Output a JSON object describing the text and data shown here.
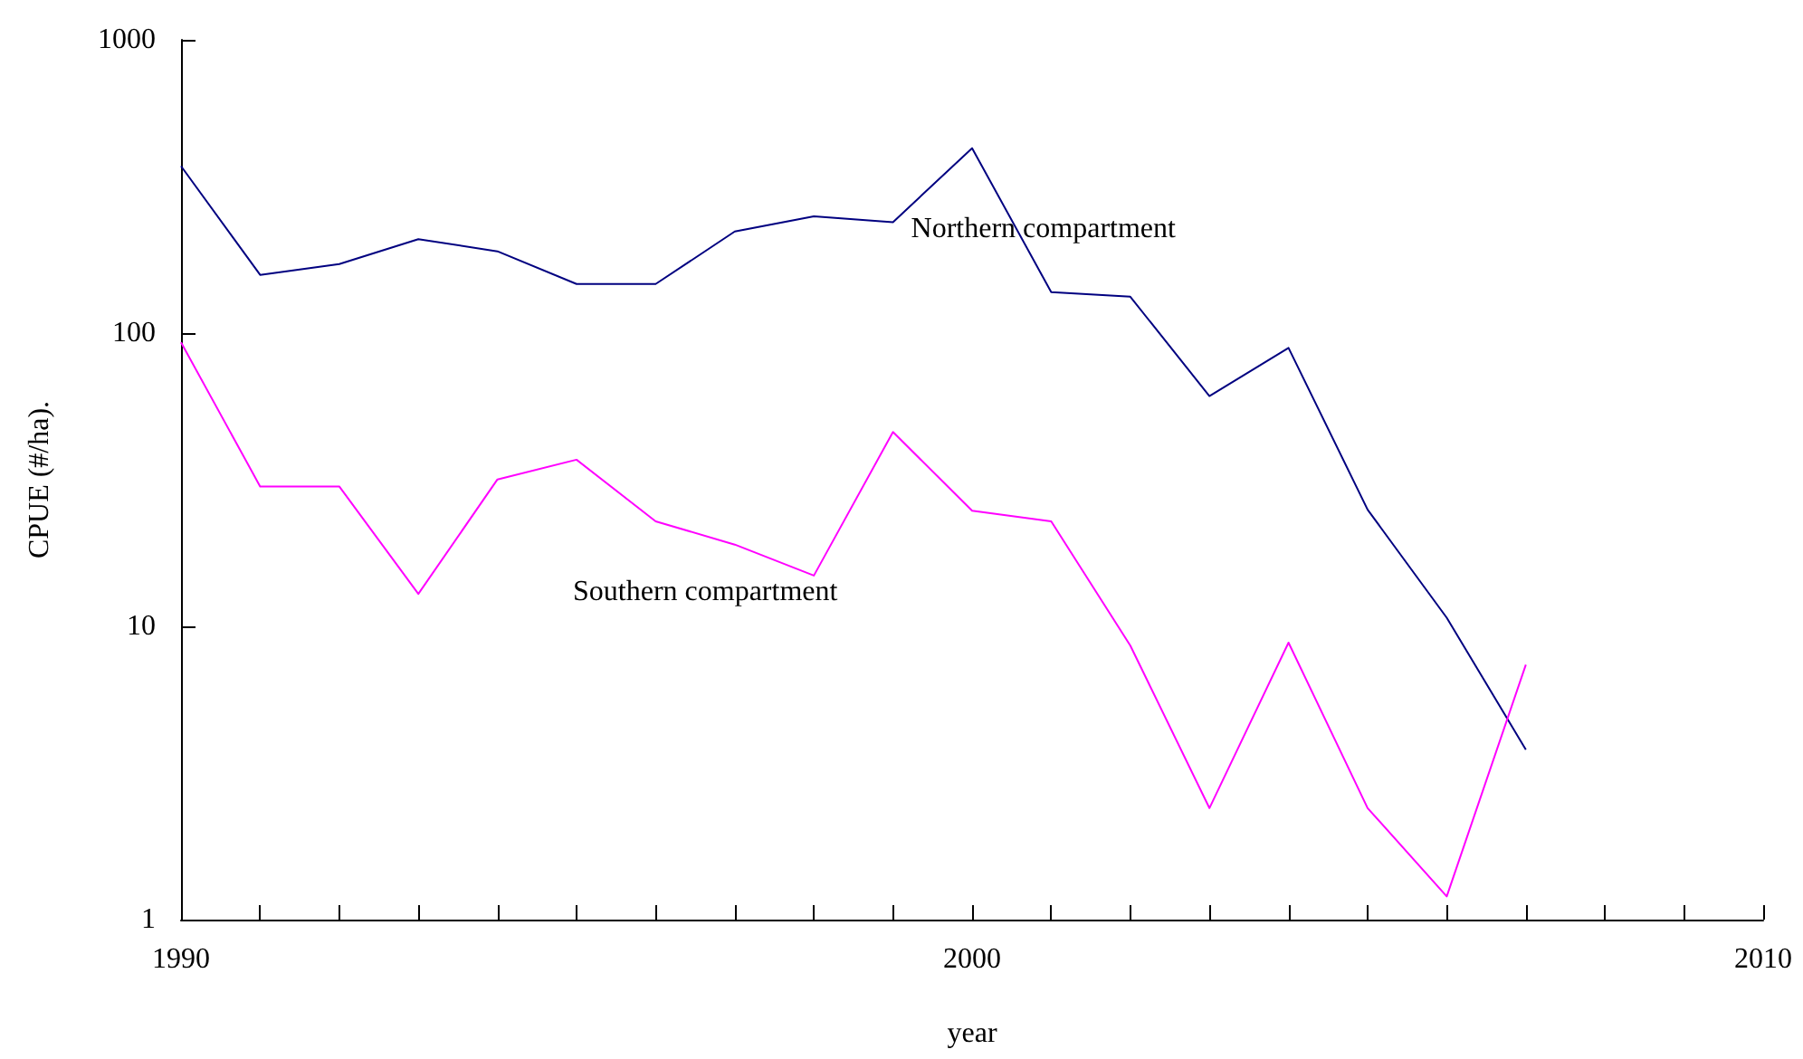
{
  "chart_data": {
    "type": "line",
    "xlabel": "year",
    "ylabel": "CPUE (#/ha).",
    "x": [
      1990,
      1991,
      1992,
      1993,
      1994,
      1995,
      1996,
      1997,
      1998,
      1999,
      2000,
      2001,
      2002,
      2003,
      2004,
      2005,
      2006,
      2007
    ],
    "series": [
      {
        "name": "Northern compartment",
        "color": "#000080",
        "values": [
          371,
          158,
          172,
          209,
          190,
          147,
          147,
          222,
          250,
          239,
          427,
          138,
          133,
          61,
          89,
          25,
          10.7,
          3.8
        ]
      },
      {
        "name": "Southern compartment",
        "color": "#ff00ff",
        "values": [
          93,
          30,
          30,
          12.9,
          31.7,
          37,
          22.8,
          19,
          14.9,
          46,
          24.8,
          22.8,
          8.6,
          2.4,
          8.8,
          2.4,
          1.2,
          7.4
        ]
      }
    ],
    "log": "y",
    "grid": false,
    "marker": "none",
    "line_style": "solid",
    "xlim": [
      1990,
      2010
    ],
    "xticks": [
      1990,
      {
        "value": 1991,
        "label": null
      },
      {
        "value": 1992,
        "label": null
      },
      {
        "value": 1993,
        "label": null
      },
      {
        "value": 1994,
        "label": null
      },
      {
        "value": 1995,
        "label": null
      },
      {
        "value": 1996,
        "label": null
      },
      {
        "value": 1997,
        "label": null
      },
      {
        "value": 1998,
        "label": null
      },
      {
        "value": 1999,
        "label": null
      },
      2000,
      {
        "value": 2001,
        "label": null
      },
      {
        "value": 2002,
        "label": null
      },
      {
        "value": 2003,
        "label": null
      },
      {
        "value": 2004,
        "label": null
      },
      {
        "value": 2005,
        "label": null
      },
      {
        "value": 2006,
        "label": null
      },
      {
        "value": 2007,
        "label": null
      },
      {
        "value": 2008,
        "label": null
      },
      {
        "value": 2009,
        "label": null
      },
      2010
    ],
    "ylim": [
      1,
      1000
    ],
    "yticks": [
      1,
      10,
      100,
      1000
    ]
  }
}
